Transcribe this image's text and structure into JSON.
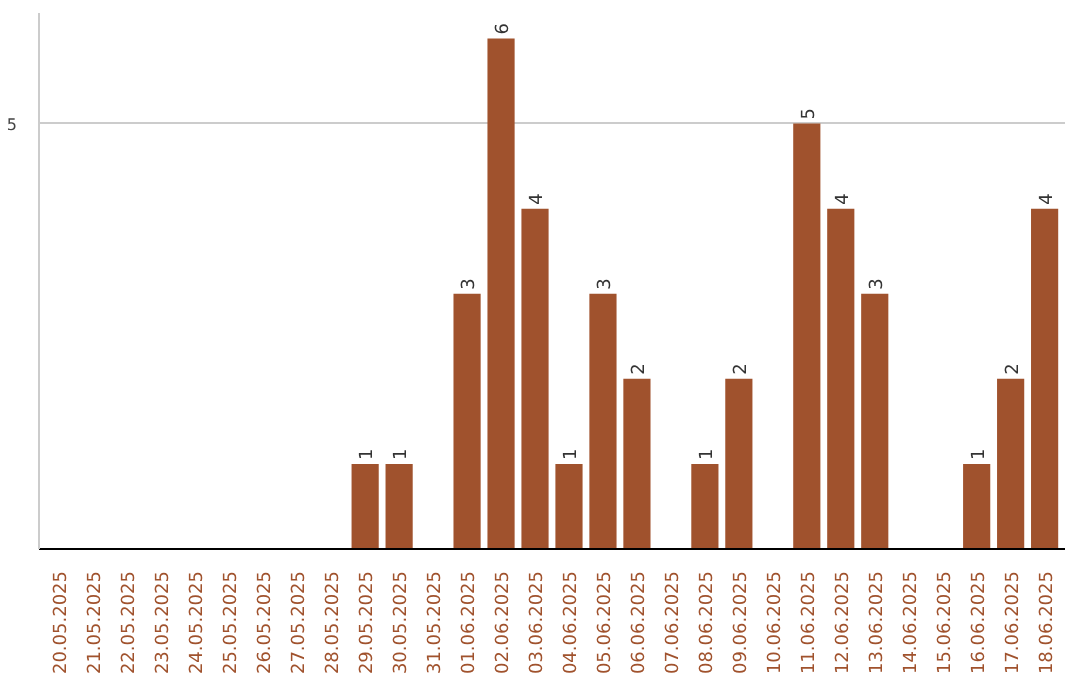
{
  "chart_data": {
    "type": "bar",
    "categories": [
      "20.05.2025",
      "21.05.2025",
      "22.05.2025",
      "23.05.2025",
      "24.05.2025",
      "25.05.2025",
      "26.05.2025",
      "27.05.2025",
      "28.05.2025",
      "29.05.2025",
      "30.05.2025",
      "31.05.2025",
      "01.06.2025",
      "02.06.2025",
      "03.06.2025",
      "04.06.2025",
      "05.06.2025",
      "06.06.2025",
      "07.06.2025",
      "08.06.2025",
      "09.06.2025",
      "10.06.2025",
      "11.06.2025",
      "12.06.2025",
      "13.06.2025",
      "14.06.2025",
      "15.06.2025",
      "16.06.2025",
      "17.06.2025",
      "18.06.2025"
    ],
    "values": [
      0,
      0,
      0,
      0,
      0,
      0,
      0,
      0,
      0,
      1,
      1,
      0,
      3,
      6,
      4,
      1,
      3,
      2,
      0,
      1,
      2,
      0,
      5,
      4,
      3,
      0,
      0,
      1,
      2,
      4
    ],
    "value_labels": [
      null,
      null,
      null,
      null,
      null,
      null,
      null,
      null,
      null,
      "1",
      "1",
      null,
      "3",
      "6",
      "4",
      "1",
      "3",
      "2",
      null,
      "1",
      "2",
      null,
      "5",
      "4",
      "3",
      null,
      null,
      "1",
      "2",
      "4"
    ],
    "color": "#a0522d",
    "ylim": [
      0,
      6.3
    ],
    "yticks": [
      5
    ],
    "grid": "y"
  }
}
